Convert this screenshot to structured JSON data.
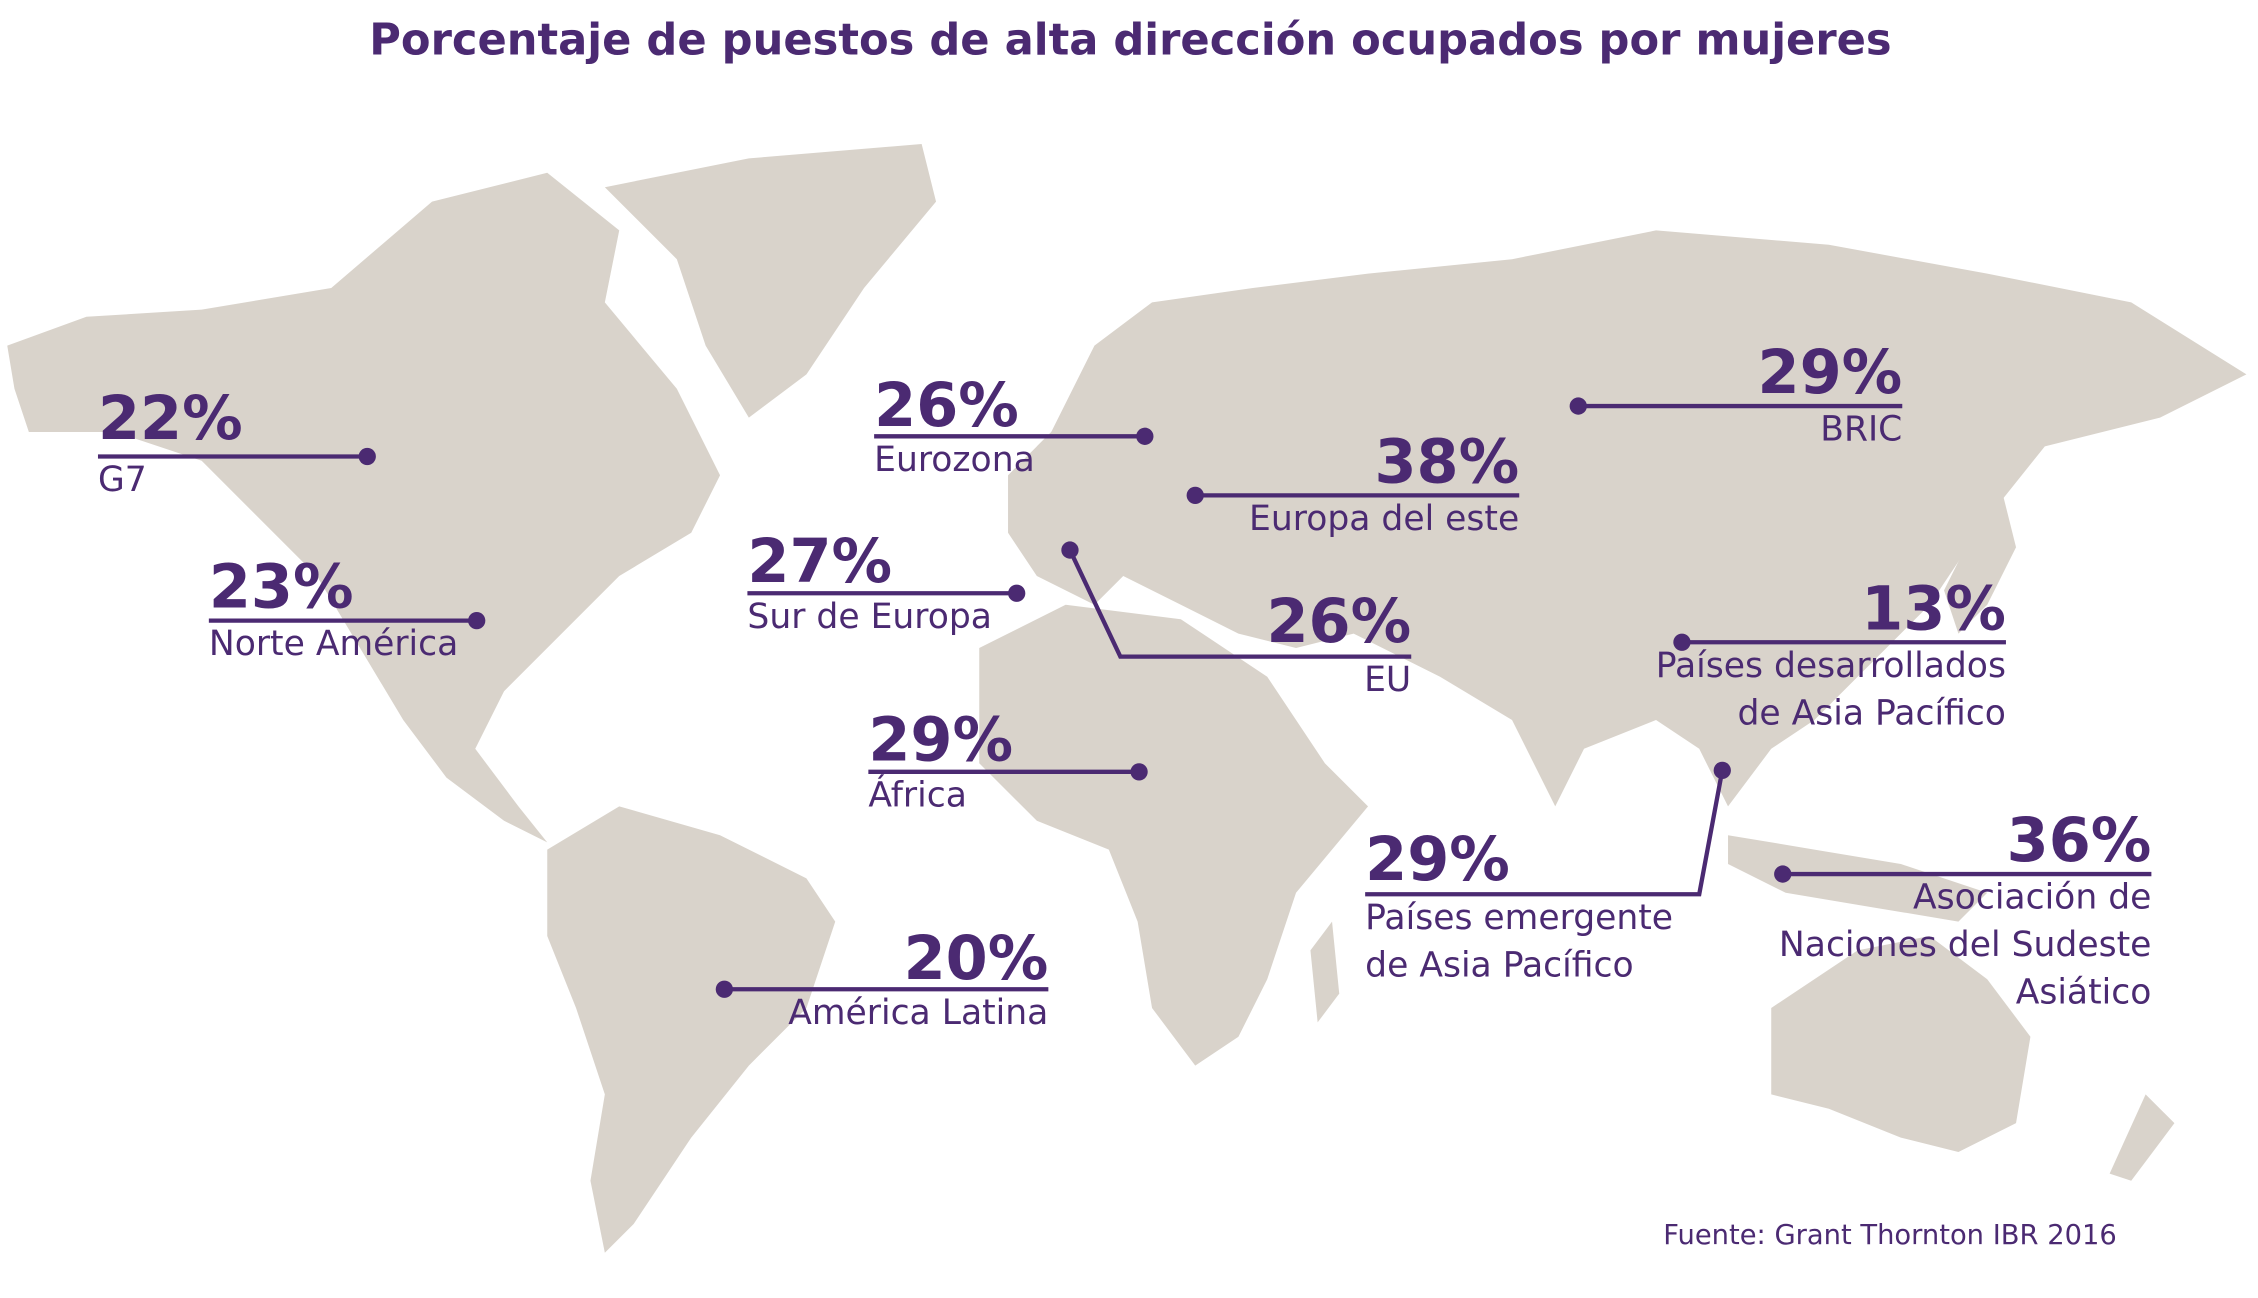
{
  "title": "Porcentaje de puestos de alta dirección ocupados por mujeres",
  "regions": [
    {
      "percent": "22%",
      "label": [
        "G7"
      ]
    },
    {
      "percent": "23%",
      "label": [
        "Norte América"
      ]
    },
    {
      "percent": "26%",
      "label": [
        "Eurozona"
      ]
    },
    {
      "percent": "27%",
      "label": [
        "Sur de Europa"
      ]
    },
    {
      "percent": "29%",
      "label": [
        "África"
      ]
    },
    {
      "percent": "20%",
      "label": [
        "América Latina"
      ]
    },
    {
      "percent": "38%",
      "label": [
        "Europa del este"
      ]
    },
    {
      "percent": "26%",
      "label": [
        "EU"
      ]
    },
    {
      "percent": "29%",
      "label": [
        "BRIC"
      ]
    },
    {
      "percent": "13%",
      "label": [
        "Países desarrollados",
        "de Asia Pacífico"
      ]
    },
    {
      "percent": "29%",
      "label": [
        "Países emergente",
        "de Asia Pacífico"
      ]
    },
    {
      "percent": "36%",
      "label": [
        "Asociación de",
        "Naciones del Sudeste",
        "Asiático"
      ]
    }
  ],
  "source": "Fuente: Grant Thornton IBR 2016"
}
